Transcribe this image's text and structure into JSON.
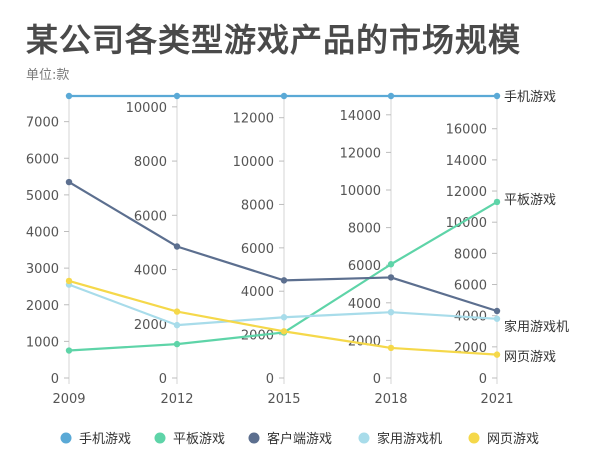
{
  "title": "某公司各类型游戏产品的市场规模",
  "unit_label": "单位:款",
  "chart_data": {
    "type": "parallel-line",
    "title": "某公司各类型游戏产品的市场规模",
    "unit": "单位:款",
    "categories": [
      "2009",
      "2012",
      "2015",
      "2018",
      "2021"
    ],
    "axes": [
      {
        "max": 7700,
        "ticks": [
          0,
          1000,
          2000,
          3000,
          4000,
          5000,
          6000,
          7000
        ]
      },
      {
        "max": 10400,
        "ticks": [
          0,
          2000,
          4000,
          6000,
          8000,
          10000
        ]
      },
      {
        "max": 13000,
        "ticks": [
          0,
          2000,
          4000,
          6000,
          8000,
          10000,
          12000
        ]
      },
      {
        "max": 15000,
        "ticks": [
          0,
          2000,
          4000,
          6000,
          8000,
          10000,
          12000,
          14000
        ]
      },
      {
        "max": 18100,
        "ticks": [
          0,
          2000,
          4000,
          6000,
          8000,
          10000,
          12000,
          14000,
          16000
        ]
      }
    ],
    "series": [
      {
        "name": "手机游戏",
        "color": "#5aa9d6",
        "values": [
          7700,
          10400,
          13000,
          15000,
          18100
        ]
      },
      {
        "name": "平板游戏",
        "color": "#5ed4a8",
        "values": [
          750,
          1250,
          2100,
          6050,
          11300
        ]
      },
      {
        "name": "客户端游戏",
        "color": "#5c6f8f",
        "values": [
          5350,
          4850,
          4500,
          5350,
          4300
        ]
      },
      {
        "name": "家用游戏机",
        "color": "#a8dcea",
        "values": [
          2550,
          1950,
          2800,
          3500,
          3800
        ]
      },
      {
        "name": "网页游戏",
        "color": "#f5d84a",
        "values": [
          2650,
          2450,
          2150,
          1600,
          1500
        ]
      }
    ]
  }
}
